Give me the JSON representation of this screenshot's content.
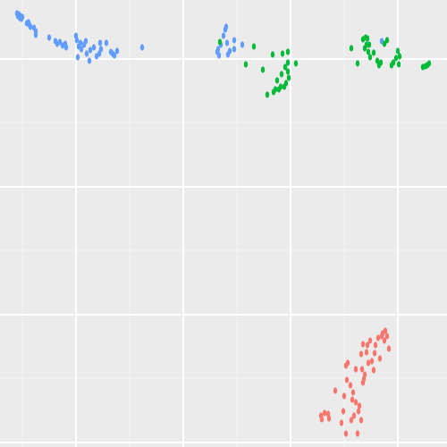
{
  "chart_data": {
    "type": "scatter",
    "title": "",
    "xlabel": "",
    "ylabel": "",
    "xlim": [
      0,
      500
    ],
    "ylim": [
      0,
      500
    ],
    "grid": true,
    "legend": "none",
    "x_major_ticks": [
      85,
      205,
      325,
      445
    ],
    "x_minor_ticks": [
      25,
      145,
      265,
      385
    ],
    "y_major_ticks": [
      66,
      209,
      352,
      495
    ],
    "y_minor_ticks": [
      137,
      280,
      423
    ],
    "series": [
      {
        "color": "#619cff",
        "points": [
          [
            19,
            15
          ],
          [
            20,
            18
          ],
          [
            21,
            16
          ],
          [
            22,
            20
          ],
          [
            23,
            18
          ],
          [
            24,
            21
          ],
          [
            25,
            19
          ],
          [
            30,
            26
          ],
          [
            32,
            25
          ],
          [
            33,
            28
          ],
          [
            34,
            30
          ],
          [
            38,
            31
          ],
          [
            40,
            35
          ],
          [
            40,
            39
          ],
          [
            55,
            42
          ],
          [
            62,
            46
          ],
          [
            64,
            49
          ],
          [
            67,
            47
          ],
          [
            70,
            51
          ],
          [
            73,
            49
          ],
          [
            74,
            53
          ],
          [
            85,
            40
          ],
          [
            86,
            45
          ],
          [
            87,
            64
          ],
          [
            88,
            52
          ],
          [
            90,
            48
          ],
          [
            91,
            55
          ],
          [
            94,
            50
          ],
          [
            96,
            46
          ],
          [
            97,
            60
          ],
          [
            100,
            68
          ],
          [
            101,
            56
          ],
          [
            105,
            53
          ],
          [
            108,
            63
          ],
          [
            111,
            60
          ],
          [
            112,
            48
          ],
          [
            113,
            55
          ],
          [
            119,
            48
          ],
          [
            124,
            58
          ],
          [
            126,
            60
          ],
          [
            128,
            62
          ],
          [
            131,
            57
          ],
          [
            159,
            53
          ],
          [
            243,
            58
          ],
          [
            244,
            55
          ],
          [
            245,
            62
          ],
          [
            247,
            50
          ],
          [
            250,
            40
          ],
          [
            252,
            33
          ],
          [
            253,
            30
          ],
          [
            254,
            48
          ],
          [
            255,
            61
          ],
          [
            257,
            57
          ],
          [
            262,
            45
          ],
          [
            262,
            55
          ],
          [
            271,
            50
          ],
          [
            427,
            46
          ]
        ]
      },
      {
        "color": "#00ba38",
        "points": [
          [
            246,
            47
          ],
          [
            275,
            72
          ],
          [
            284,
            52
          ],
          [
            294,
            78
          ],
          [
            299,
            106
          ],
          [
            305,
            61
          ],
          [
            306,
            103
          ],
          [
            308,
            100
          ],
          [
            310,
            90
          ],
          [
            312,
            100
          ],
          [
            314,
            97
          ],
          [
            315,
            83
          ],
          [
            316,
            60
          ],
          [
            318,
            97
          ],
          [
            319,
            75
          ],
          [
            320,
            93
          ],
          [
            322,
            80
          ],
          [
            322,
            70
          ],
          [
            322,
            58
          ],
          [
            323,
            87
          ],
          [
            331,
            71
          ],
          [
            393,
            54
          ],
          [
            400,
            71
          ],
          [
            406,
            44
          ],
          [
            408,
            54
          ],
          [
            409,
            42
          ],
          [
            410,
            50
          ],
          [
            411,
            43
          ],
          [
            412,
            58
          ],
          [
            413,
            50
          ],
          [
            414,
            64
          ],
          [
            418,
            59
          ],
          [
            422,
            68
          ],
          [
            424,
            73
          ],
          [
            426,
            70
          ],
          [
            430,
            49
          ],
          [
            433,
            45
          ],
          [
            438,
            73
          ],
          [
            440,
            70
          ],
          [
            443,
            65
          ],
          [
            445,
            57
          ],
          [
            446,
            72
          ],
          [
            447,
            63
          ],
          [
            473,
            75
          ],
          [
            476,
            74
          ],
          [
            478,
            73
          ],
          [
            480,
            71
          ]
        ]
      },
      {
        "color": "#f8766d",
        "points": [
          [
            359,
            465
          ],
          [
            360,
            469
          ],
          [
            363,
            462
          ],
          [
            367,
            463
          ],
          [
            368,
            468
          ],
          [
            375,
            437
          ],
          [
            382,
            473
          ],
          [
            384,
            460
          ],
          [
            385,
            443
          ],
          [
            387,
            485
          ],
          [
            387,
            409
          ],
          [
            388,
            425
          ],
          [
            389,
            406
          ],
          [
            392,
            431
          ],
          [
            393,
            470
          ],
          [
            394,
            447
          ],
          [
            395,
            439
          ],
          [
            396,
            465
          ],
          [
            398,
            450
          ],
          [
            398,
            413
          ],
          [
            400,
            485
          ],
          [
            401,
            460
          ],
          [
            402,
            454
          ],
          [
            404,
            470
          ],
          [
            404,
            396
          ],
          [
            405,
            413
          ],
          [
            406,
            428
          ],
          [
            406,
            385
          ],
          [
            407,
            424
          ],
          [
            408,
            419
          ],
          [
            410,
            394
          ],
          [
            411,
            386
          ],
          [
            412,
            406
          ],
          [
            414,
            381
          ],
          [
            416,
            404
          ],
          [
            418,
            414
          ],
          [
            419,
            395
          ],
          [
            420,
            386
          ],
          [
            423,
            378
          ],
          [
            425,
            401
          ],
          [
            427,
            376
          ],
          [
            428,
            373
          ],
          [
            430,
            381
          ],
          [
            431,
            370
          ],
          [
            433,
            376
          ],
          [
            435,
            390
          ]
        ]
      }
    ]
  }
}
